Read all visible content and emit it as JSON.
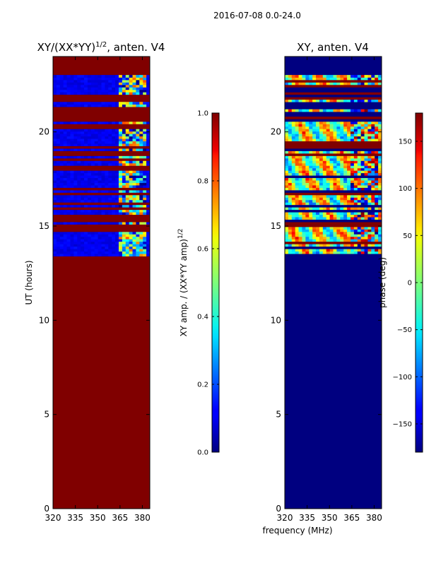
{
  "figure": {
    "suptitle": "2016-07-08 0.0-24.0"
  },
  "chart_data": [
    {
      "type": "heatmap",
      "title_main": "XY/(XX*YY)",
      "title_sup": "1/2",
      "title_tail": ", anten. V4",
      "xlabel": "",
      "ylabel": "UT (hours)",
      "xlim": [
        320,
        385
      ],
      "ylim": [
        0,
        24
      ],
      "xticks": [
        320,
        335,
        350,
        365,
        380
      ],
      "yticks": [
        0,
        5,
        10,
        15,
        20
      ],
      "colorbar": {
        "label_main": "XY amp. / (XX*YY amp)",
        "label_sup": "1/2",
        "range": [
          0.0,
          1.0
        ],
        "ticks": [
          "0.0",
          "0.2",
          "0.4",
          "0.6",
          "0.8",
          "1.0"
        ],
        "colormap": "jet"
      },
      "background_value": 1.0,
      "data_rows_ut": [
        13.4,
        23.0
      ],
      "data_gap_ut": [
        20.7,
        21.9
      ],
      "rfi_band_mhz": [
        362,
        382
      ]
    },
    {
      "type": "heatmap",
      "title": "XY, anten. V4",
      "xlabel": "frequency (MHz)",
      "ylabel": "",
      "xlim": [
        320,
        385
      ],
      "ylim": [
        0,
        24
      ],
      "xticks": [
        320,
        335,
        350,
        365,
        380
      ],
      "yticks": [
        0,
        5,
        10,
        15,
        20
      ],
      "colorbar": {
        "label": "phase (deg)",
        "range": [
          -180,
          180
        ],
        "ticks": [
          "−150",
          "−100",
          "−50",
          "0",
          "50",
          "100",
          "150"
        ],
        "colormap": "jet"
      },
      "background_value": -180,
      "data_rows_ut": [
        13.4,
        23.0
      ],
      "data_gap_ut": [
        20.7,
        21.9
      ],
      "rfi_band_mhz": [
        362,
        382
      ]
    }
  ],
  "colors": {
    "jet_min": "#00007f",
    "jet_max": "#7f0000"
  }
}
